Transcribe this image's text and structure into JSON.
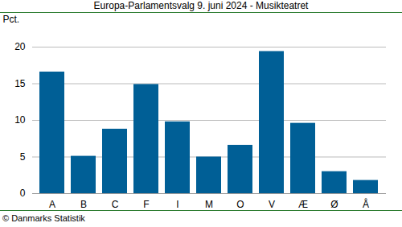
{
  "chart_data": {
    "type": "bar",
    "title": "Europa-Parlamentsvalg 9. juni 2024 - Musikteatret",
    "y_label": "Pct.",
    "caption": "© Danmarks Statistik",
    "categories": [
      "A",
      "B",
      "C",
      "F",
      "I",
      "M",
      "O",
      "V",
      "Æ",
      "Ø",
      "Å"
    ],
    "values": [
      16.6,
      5.1,
      8.8,
      14.9,
      9.8,
      5.0,
      6.6,
      19.4,
      9.6,
      3.0,
      1.8
    ],
    "color": "#005f96",
    "ylim": [
      0,
      20
    ],
    "yticks": [
      0,
      5,
      10,
      15,
      20
    ],
    "grid": true
  }
}
